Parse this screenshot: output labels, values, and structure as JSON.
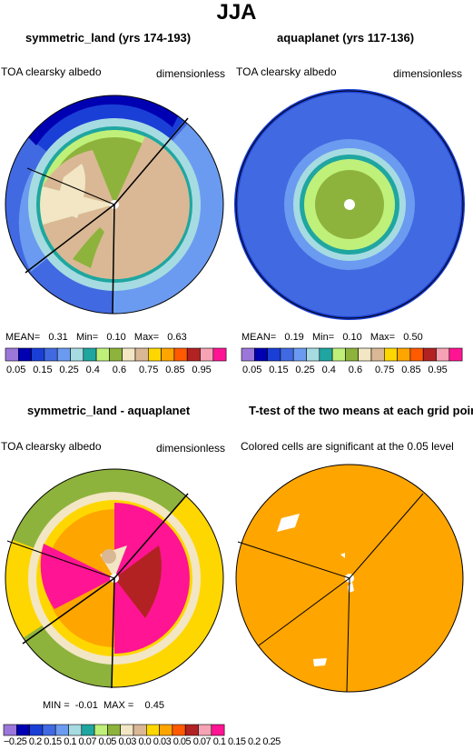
{
  "title": "JJA",
  "colors": {
    "abs_scale": [
      "#9b77d9",
      "#0000b3",
      "#1a3fd6",
      "#4169e1",
      "#6b9bf0",
      "#a6dbe2",
      "#1fa6a0",
      "#bff07a",
      "#8db33c",
      "#f2e6c4",
      "#dab895",
      "#ffd700",
      "#ffa500",
      "#ff5a00",
      "#b22222",
      "#f5a3b5",
      "#ff1493"
    ],
    "diff_scale": [
      "#9b77d9",
      "#0000b3",
      "#1a3fd6",
      "#4169e1",
      "#6b9bf0",
      "#a6dbe2",
      "#1fa6a0",
      "#bff07a",
      "#8db33c",
      "#f2e6c4",
      "#dab895",
      "#ffd700",
      "#ffa500",
      "#ff5a00",
      "#b22222",
      "#f5a3b5",
      "#ff1493"
    ],
    "ttest_fill": "#ffa500"
  },
  "panels": {
    "p1": {
      "title": "symmetric_land (yrs 174-193)",
      "left_label": "TOA clearsky albedo",
      "right_label": "dimensionless",
      "stats": {
        "mean_label": "MEAN=",
        "mean": "0.31",
        "min_label": "Min=",
        "min": "0.10",
        "max_label": "Max=",
        "max": "0.63"
      },
      "colorbar_ticks": [
        "0.05",
        "0.15",
        "0.25",
        "0.4",
        "0.6",
        "0.75",
        "0.85",
        "0.95"
      ]
    },
    "p2": {
      "title": "aquaplanet (yrs 117-136)",
      "left_label": "TOA clearsky albedo",
      "right_label": "dimensionless",
      "stats": {
        "mean_label": "MEAN=",
        "mean": "0.19",
        "min_label": "Min=",
        "min": "0.10",
        "max_label": "Max=",
        "max": "0.50"
      },
      "colorbar_ticks": [
        "0.05",
        "0.15",
        "0.25",
        "0.4",
        "0.6",
        "0.75",
        "0.85",
        "0.95"
      ]
    },
    "p3": {
      "title": "symmetric_land - aquaplanet",
      "left_label": "TOA clearsky albedo",
      "right_label": "dimensionless",
      "stats": {
        "min_label": "MIN =",
        "min": "-0.01",
        "max_label": "MAX =",
        "max": "0.45"
      },
      "colorbar_ticks_text": "−0.25 0.2 0.15 0.1 0.07 0.05 0.03 0.0 0.03 0.05 0.07 0.1 0.15 0.2 0.25"
    },
    "p4": {
      "title": "T-test of the two means at each grid point",
      "left_label": "Colored cells are significant at the 0.05 level"
    }
  },
  "chart_data": [
    {
      "type": "heatmap",
      "title": "symmetric_land (yrs 174-193)",
      "variable": "TOA clearsky albedo",
      "units": "dimensionless",
      "projection": "polar",
      "mean": 0.31,
      "min": 0.1,
      "max": 0.63,
      "levels": [
        0.05,
        0.1,
        0.15,
        0.2,
        0.25,
        0.3,
        0.4,
        0.5,
        0.6,
        0.7,
        0.75,
        0.8,
        0.85,
        0.9,
        0.95
      ]
    },
    {
      "type": "heatmap",
      "title": "aquaplanet (yrs 117-136)",
      "variable": "TOA clearsky albedo",
      "units": "dimensionless",
      "projection": "polar",
      "mean": 0.19,
      "min": 0.1,
      "max": 0.5,
      "levels": [
        0.05,
        0.1,
        0.15,
        0.2,
        0.25,
        0.3,
        0.4,
        0.5,
        0.6,
        0.7,
        0.75,
        0.8,
        0.85,
        0.9,
        0.95
      ]
    },
    {
      "type": "heatmap",
      "title": "symmetric_land - aquaplanet",
      "variable": "TOA clearsky albedo",
      "units": "dimensionless",
      "projection": "polar",
      "min": -0.01,
      "max": 0.45,
      "levels": [
        -0.25,
        -0.2,
        -0.15,
        -0.1,
        -0.07,
        -0.05,
        -0.03,
        0.0,
        0.03,
        0.05,
        0.07,
        0.1,
        0.15,
        0.2,
        0.25
      ]
    },
    {
      "type": "heatmap",
      "title": "T-test of the two means at each grid point",
      "note": "Colored cells are significant at the 0.05 level",
      "projection": "polar"
    }
  ]
}
